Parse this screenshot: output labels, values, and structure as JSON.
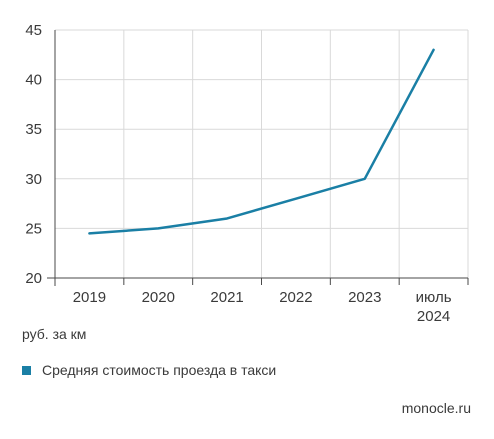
{
  "chart_data": {
    "type": "line",
    "categories": [
      "2019",
      "2020",
      "2021",
      "2022",
      "2023",
      "июль 2024"
    ],
    "category_lines": [
      [
        "2019"
      ],
      [
        "2020"
      ],
      [
        "2021"
      ],
      [
        "2022"
      ],
      [
        "2023"
      ],
      [
        "июль",
        "2024"
      ]
    ],
    "series": [
      {
        "name": "Средняя стоимость проезда в такси",
        "values": [
          24.5,
          25,
          26,
          28,
          30,
          43
        ],
        "color": "#1a7fa5"
      }
    ],
    "ylim": [
      20,
      45
    ],
    "yticks": [
      20,
      25,
      30,
      35,
      40,
      45
    ],
    "ylabel": "руб. за км",
    "grid": true,
    "legend": "bottom-left"
  },
  "source": "monocle.ru",
  "colors": {
    "line": "#1a7fa5",
    "grid": "#d9d9d9",
    "axis": "#4a4a4a",
    "text": "#3a3a3a"
  }
}
